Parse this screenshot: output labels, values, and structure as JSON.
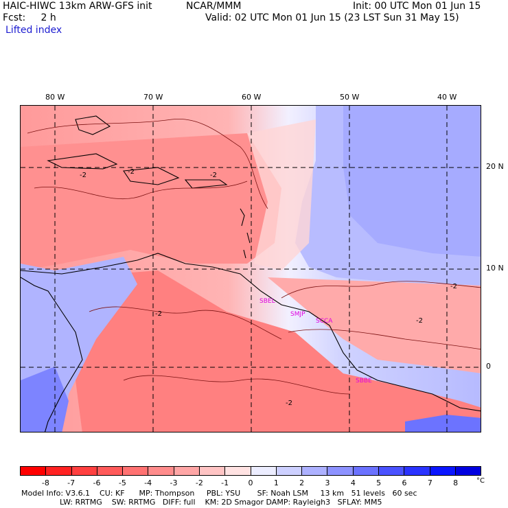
{
  "header": {
    "model_title": "HAIC-HIWC 13km ARW-GFS init",
    "institution": "NCAR/MMM",
    "init_time": "Init: 00 UTC Mon 01 Jun 15",
    "forecast_hour": "Fcst:     2 h",
    "valid_time": "Valid: 02 UTC Mon 01 Jun 15 (23 LST Sun 31 May 15)",
    "field_name": "Lifted index"
  },
  "map": {
    "longitude_labels": [
      "80 W",
      "70 W",
      "60 W",
      "50 W",
      "40 W"
    ],
    "latitude_labels": [
      "20 N",
      "10 N",
      "0"
    ],
    "contour_labels": [
      "-2",
      "-2",
      "-2",
      "-2",
      "-2",
      "-2",
      "-2"
    ],
    "station_labels": [
      "SBEL",
      "SMJP",
      "SCCA",
      "SBBE"
    ],
    "colors": {
      "station_label": "#e000e0",
      "coast": "#000000",
      "contour": "#7a1010"
    }
  },
  "colorbar": {
    "ticks": [
      "-8",
      "-7",
      "-6",
      "-5",
      "-4",
      "-3",
      "-2",
      "-1",
      "0",
      "1",
      "2",
      "3",
      "4",
      "5",
      "6",
      "7",
      "8"
    ],
    "unit": "°C",
    "colors": [
      "#ff0000",
      "#ff2222",
      "#ff4040",
      "#ff5a5a",
      "#ff7272",
      "#ff8c8c",
      "#ffa6a6",
      "#ffc4c4",
      "#ffe2e2",
      "#ecedff",
      "#cdd0ff",
      "#adb1ff",
      "#8d92ff",
      "#6b72ff",
      "#4a52ff",
      "#2a33ff",
      "#0a15ff",
      "#0000e0"
    ]
  },
  "footer": {
    "line1": "Model Info: V3.6.1    CU: KF      MP: Thompson     PBL: YSU       SF: Noah LSM     13 km   51 levels   60 sec",
    "line2": "                LW: RRTMG    SW: RRTMG   DIFF: full    KM: 2D Smagor DAMP: Rayleigh3   SFLAY: MM5"
  }
}
